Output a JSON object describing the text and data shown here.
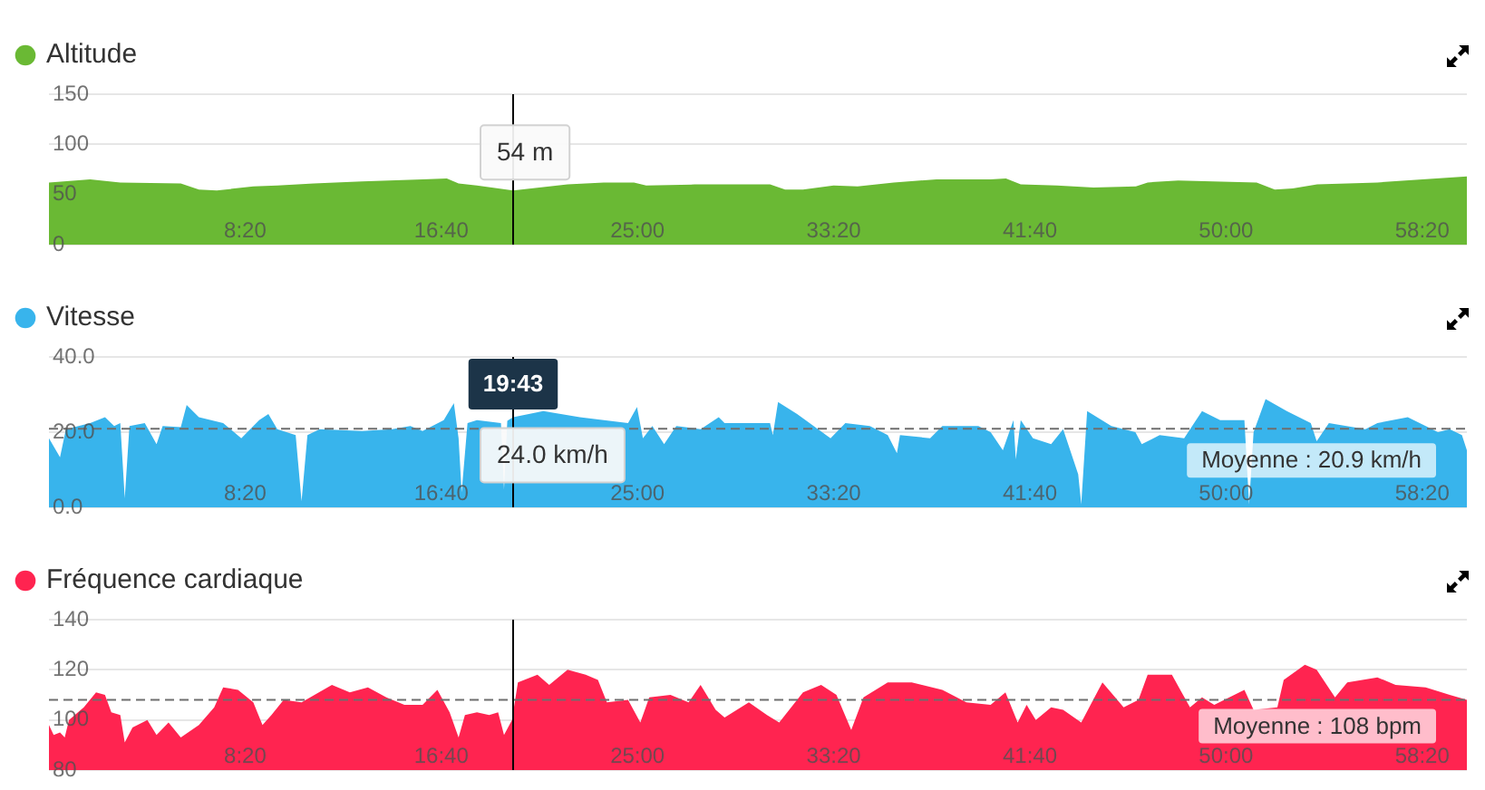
{
  "chart_data": [
    {
      "type": "area",
      "x": [
        0,
        1.75,
        3.03,
        5.6,
        6.37,
        7.13,
        8.68,
        9.7,
        11.25,
        13.3,
        15.87,
        16.9,
        17.4,
        18.18,
        19.7167,
        22.03,
        23.57,
        24.85,
        25.37,
        27.42,
        28.7,
        30.63,
        31.27,
        32.03,
        33.33,
        34.35,
        35.88,
        37.7,
        40,
        40.65,
        41.28,
        42.82,
        44.37,
        46.17,
        46.67,
        47.97,
        51.3,
        52.07,
        52.83,
        53.87,
        56.43,
        60.23
      ],
      "series": [
        {
          "name": "Altitude",
          "color": "#6ab934",
          "values": [
            62,
            65,
            62,
            61,
            55,
            54,
            58,
            59,
            61,
            63,
            65,
            66,
            61,
            59,
            54,
            60,
            62,
            62,
            59,
            60,
            60,
            60,
            55,
            55,
            59,
            58,
            62,
            65,
            65,
            66,
            60,
            59,
            57,
            58,
            62,
            64,
            62,
            55,
            56,
            60,
            62,
            68
          ],
          "value_labels": [
            null,
            null,
            null,
            null,
            null,
            null,
            null,
            null,
            null,
            null,
            null,
            null,
            null,
            null,
            "54 m",
            null,
            null,
            null,
            null,
            null,
            null,
            null,
            null,
            null,
            null,
            null,
            null,
            null,
            null,
            null,
            null,
            null,
            null,
            null,
            null,
            null,
            null,
            null,
            null,
            null,
            null,
            null
          ]
        }
      ],
      "xlim": [
        0,
        60.23
      ],
      "xticks": [
        {
          "value": 8.3333,
          "label": "8:20"
        },
        {
          "value": 16.6667,
          "label": "16:40"
        },
        {
          "value": 25,
          "label": "25:00"
        },
        {
          "value": 33.3333,
          "label": "33:20"
        },
        {
          "value": 41.6667,
          "label": "41:40"
        },
        {
          "value": 50,
          "label": "50:00"
        },
        {
          "value": 58.3333,
          "label": "58:20"
        }
      ],
      "ylim": [
        0,
        150
      ],
      "yticks": [
        0,
        50,
        100,
        150
      ],
      "grid": "y",
      "legend": "top left",
      "ref_lines": [
        {
          "axis": "x",
          "value": 19.7167,
          "color": "#000000"
        }
      ]
    },
    {
      "type": "area",
      "x": [
        0,
        0.47,
        0.72,
        1.75,
        2.38,
        2.77,
        3.03,
        3.22,
        3.42,
        4.07,
        4.57,
        4.83,
        5.6,
        5.85,
        6.37,
        7.4,
        8.17,
        8.93,
        9.32,
        9.7,
        10.48,
        10.73,
        10.98,
        11.5,
        13.3,
        14.58,
        15.35,
        15.87,
        16.77,
        17.2,
        17.4,
        17.53,
        17.78,
        18.18,
        19.2,
        19.33,
        19.47,
        19.7167,
        21,
        22.55,
        23.57,
        24.6,
        24.98,
        25.23,
        25.63,
        26.13,
        26.65,
        27.68,
        28.45,
        28.7,
        29.73,
        30.63,
        30.75,
        30.97,
        31.78,
        33.2,
        33.83,
        34.87,
        35.63,
        36.02,
        36.15,
        37.43,
        37.95,
        39.48,
        40,
        40.52,
        40.97,
        41.07,
        41.28,
        41.8,
        42.57,
        43.08,
        43.72,
        43.85,
        44.1,
        45.13,
        46.15,
        46.42,
        47.18,
        48.22,
        48.98,
        49.75,
        50.78,
        50.98,
        51.17,
        51.68,
        52.58,
        53.6,
        53.85,
        54.37,
        55.92,
        56.43,
        57.72,
        58.48,
        59,
        59.5,
        60.02,
        60.23
      ],
      "series": [
        {
          "name": "Vitesse",
          "color": "#38b4ec",
          "values": [
            18.4,
            13.3,
            20.8,
            22.4,
            24.0,
            21.6,
            22.4,
            2.4,
            21.6,
            22.4,
            16.8,
            21.6,
            21.3,
            27.2,
            24.0,
            22.4,
            18.4,
            23.2,
            24.8,
            20.8,
            19.2,
            1.6,
            19.2,
            20.8,
            20.3,
            20.8,
            21.6,
            20.3,
            23.2,
            27.7,
            18.4,
            4.0,
            22.4,
            23.2,
            22.4,
            4.8,
            23.0,
            24.0,
            25.6,
            24.0,
            23.2,
            22.4,
            26.7,
            18.4,
            21.6,
            16.8,
            21.6,
            20.8,
            24.0,
            22.4,
            22.4,
            22.4,
            19.2,
            28.0,
            24.8,
            18.4,
            22.4,
            21.6,
            19.2,
            14.4,
            19.2,
            18.4,
            21.6,
            21.6,
            20.0,
            15.2,
            23.2,
            12.8,
            23.2,
            18.4,
            16.8,
            20.8,
            8.8,
            0.8,
            25.6,
            21.6,
            20.0,
            16.8,
            19.2,
            18.4,
            25.6,
            23.2,
            23.2,
            0.8,
            20.0,
            28.8,
            25.6,
            22.4,
            17.6,
            22.4,
            20.8,
            22.4,
            24.0,
            21.6,
            20.0,
            20.8,
            19.2,
            15.2
          ],
          "value_labels": [
            null,
            null,
            null,
            null,
            null,
            null,
            null,
            null,
            null,
            null,
            null,
            null,
            null,
            null,
            null,
            null,
            null,
            null,
            null,
            null,
            null,
            null,
            null,
            null,
            null,
            null,
            null,
            null,
            null,
            null,
            null,
            null,
            null,
            null,
            null,
            null,
            null,
            "24.0 km/h",
            null,
            null,
            null,
            null,
            null,
            null,
            null,
            null,
            null,
            null,
            null,
            null,
            null,
            null,
            null,
            null,
            null,
            null,
            null,
            null,
            null,
            null,
            null,
            null,
            null,
            null,
            null,
            null,
            null,
            null,
            null,
            null,
            null,
            null,
            null,
            null,
            null,
            null,
            null,
            null,
            null,
            null,
            null,
            null,
            null,
            null,
            null,
            null,
            null,
            null,
            null,
            null,
            null,
            null,
            null,
            null,
            null,
            null,
            null,
            null
          ]
        }
      ],
      "xlim": [
        0,
        60.23
      ],
      "xticks": [
        {
          "value": 8.3333,
          "label": "8:20"
        },
        {
          "value": 16.6667,
          "label": "16:40"
        },
        {
          "value": 25,
          "label": "25:00"
        },
        {
          "value": 33.3333,
          "label": "33:20"
        },
        {
          "value": 41.6667,
          "label": "41:40"
        },
        {
          "value": 50,
          "label": "50:00"
        },
        {
          "value": 58.3333,
          "label": "58:20"
        }
      ],
      "ylim": [
        0,
        40
      ],
      "yticks": [
        {
          "value": 0,
          "label": "0.0"
        },
        {
          "value": 20,
          "label": "20.0"
        },
        {
          "value": 40,
          "label": "40.0"
        }
      ],
      "grid": "y",
      "legend": "top left",
      "ref_lines": [
        {
          "axis": "y",
          "value": 20.9,
          "label": "Moyenne : 20.9 km/h",
          "color": "#6e6e6e",
          "line_style": "dashed"
        },
        {
          "axis": "x",
          "value": 19.7167,
          "color": "#000000"
        }
      ],
      "annotations": [
        {
          "text": "19:43",
          "x": 19.7167,
          "y": 40
        }
      ]
    },
    {
      "type": "area",
      "x": [
        0,
        0.2,
        0.47,
        0.67,
        0.85,
        1.48,
        2,
        2.38,
        2.65,
        3.03,
        3.22,
        3.55,
        4.18,
        4.57,
        5.08,
        5.6,
        6.37,
        7.02,
        7.4,
        8.03,
        8.68,
        9.07,
        9.45,
        9.97,
        10.73,
        12.02,
        12.78,
        13.55,
        14.33,
        15.1,
        15.87,
        16.5,
        17.02,
        17.4,
        17.67,
        18.18,
        18.7,
        19.08,
        19.33,
        19.67,
        19.92,
        20.75,
        21.25,
        22.03,
        22.8,
        23.32,
        23.7,
        24.6,
        25.12,
        25.5,
        26.4,
        27.17,
        27.68,
        28.32,
        28.7,
        29.73,
        30.5,
        31.02,
        32.03,
        32.8,
        33.45,
        34.08,
        34.6,
        35.63,
        36.65,
        37.95,
        38.97,
        40,
        40.63,
        41.15,
        41.53,
        41.92,
        42.57,
        43.08,
        43.85,
        44.75,
        45.65,
        46.28,
        46.67,
        47.7,
        48.47,
        48.98,
        49.5,
        50.78,
        51.17,
        52.18,
        52.45,
        53.35,
        53.85,
        54.63,
        55.15,
        56.43,
        57.2,
        58.48,
        59.5,
        60.23
      ],
      "series": [
        {
          "name": "Fréquence cardiaque",
          "color": "#ff2450",
          "values": [
            98,
            94,
            95,
            93,
            100,
            105,
            111,
            110,
            103,
            102,
            91,
            97,
            100,
            94,
            99,
            93,
            98,
            105,
            113,
            112,
            107,
            98,
            102,
            108,
            107,
            114,
            111,
            113,
            109,
            106,
            106,
            112,
            103,
            93,
            102,
            103,
            102,
            103,
            94,
            100,
            115,
            118,
            114,
            120,
            118,
            116,
            107,
            108,
            99,
            109,
            110,
            107,
            114,
            104,
            101,
            107,
            102,
            99,
            111,
            114,
            110,
            96,
            109,
            115,
            115,
            112,
            107,
            106,
            111,
            99,
            106,
            100,
            105,
            104,
            99,
            115,
            105,
            108,
            118,
            118,
            105,
            109,
            106,
            112,
            104,
            105,
            116,
            122,
            120,
            109,
            115,
            117,
            114,
            113,
            110,
            108
          ]
        }
      ],
      "xlim": [
        0,
        60.23
      ],
      "xticks": [
        {
          "value": 8.3333,
          "label": "8:20"
        },
        {
          "value": 16.6667,
          "label": "16:40"
        },
        {
          "value": 25,
          "label": "25:00"
        },
        {
          "value": 33.3333,
          "label": "33:20"
        },
        {
          "value": 41.6667,
          "label": "41:40"
        },
        {
          "value": 50,
          "label": "50:00"
        },
        {
          "value": 58.3333,
          "label": "58:20"
        }
      ],
      "ylim": [
        80,
        140
      ],
      "yticks": [
        80,
        100,
        120,
        140
      ],
      "grid": "y",
      "legend": "top left",
      "ref_lines": [
        {
          "axis": "y",
          "value": 108,
          "label": "Moyenne : 108 bpm",
          "color": "#6e6e6e",
          "line_style": "dashed"
        },
        {
          "axis": "x",
          "value": 19.7167,
          "color": "#000000"
        }
      ]
    }
  ]
}
